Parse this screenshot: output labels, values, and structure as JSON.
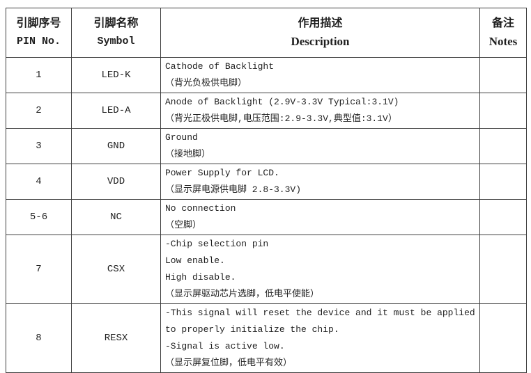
{
  "colors": {
    "background": "#ffffff",
    "border": "#3d3d3d",
    "text": "#1f1f1f"
  },
  "table": {
    "headers": [
      {
        "zh": "引脚序号",
        "en": "PIN No."
      },
      {
        "zh": "引脚名称",
        "en": "Symbol"
      },
      {
        "zh": "作用描述",
        "en": "Description"
      },
      {
        "zh": "备注",
        "en": "Notes"
      }
    ],
    "rows": [
      {
        "pin": "1",
        "symbol": "LED-K",
        "description": [
          "Cathode of Backlight",
          "（背光负极供电脚）"
        ],
        "notes": ""
      },
      {
        "pin": "2",
        "symbol": "LED-A",
        "description": [
          "Anode of Backlight (2.9V-3.3V Typical:3.1V)",
          "（背光正极供电脚,电压范围:2.9-3.3V,典型值:3.1V）"
        ],
        "notes": ""
      },
      {
        "pin": "3",
        "symbol": "GND",
        "description": [
          "Ground",
          "（接地脚）"
        ],
        "notes": ""
      },
      {
        "pin": "4",
        "symbol": "VDD",
        "description": [
          "Power Supply for LCD.",
          "（显示屏电源供电脚 2.8-3.3V)"
        ],
        "notes": ""
      },
      {
        "pin": "5-6",
        "symbol": "NC",
        "description": [
          "No connection",
          "（空脚）"
        ],
        "notes": ""
      },
      {
        "pin": "7",
        "symbol": "CSX",
        "description": [
          "-Chip selection pin",
          "Low enable.",
          "High disable.",
          "（显示屏驱动芯片选脚，低电平使能）"
        ],
        "notes": ""
      },
      {
        "pin": "8",
        "symbol": "RESX",
        "description": [
          "-This signal will reset the device and it must be applied",
          "to properly initialize the chip.",
          "-Signal is active low.",
          "（显示屏复位脚，低电平有效）"
        ],
        "notes": ""
      }
    ]
  }
}
